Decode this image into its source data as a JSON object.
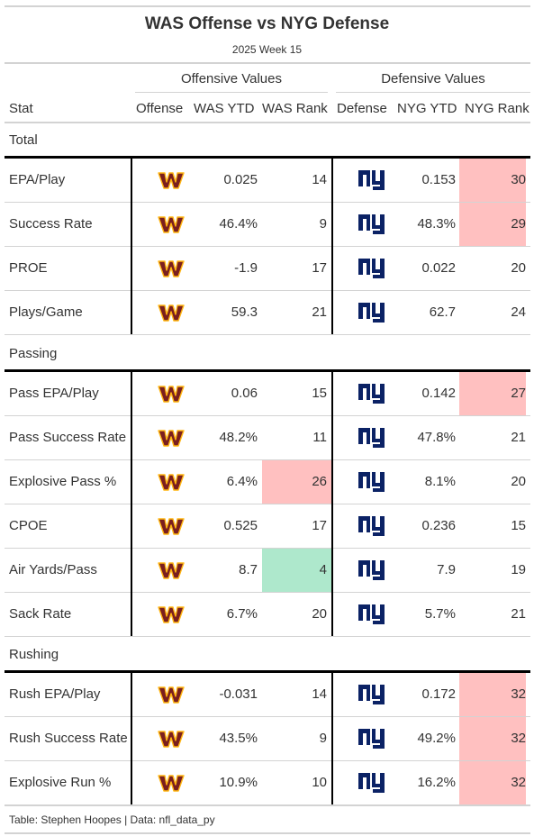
{
  "title": "WAS Offense vs NYG Defense",
  "subtitle": "2025 Week 15",
  "spanners": {
    "offense": "Offensive Values",
    "defense": "Defensive Values"
  },
  "columns": {
    "stat": "Stat",
    "offense": "Offense",
    "off_ytd": "WAS YTD",
    "off_rank": "WAS Rank",
    "defense": "Defense",
    "def_ytd": "NYG YTD",
    "def_rank": "NYG Rank"
  },
  "logos": {
    "offense": {
      "icon": "commanders-w-logo",
      "color": "#7a1f1f",
      "accent": "#ffb612"
    },
    "defense": {
      "icon": "giants-ny-logo",
      "color": "#0b2265"
    }
  },
  "highlight_colors": {
    "bad": "#ffc0c0",
    "good": "#aee8cc"
  },
  "groups": [
    {
      "name": "Total",
      "rows": [
        {
          "stat": "EPA/Play",
          "off_ytd": "0.025",
          "off_rank": "14",
          "off_hl": "",
          "def_ytd": "0.153",
          "def_rank": "30",
          "def_hl": "bad"
        },
        {
          "stat": "Success Rate",
          "off_ytd": "46.4%",
          "off_rank": "9",
          "off_hl": "",
          "def_ytd": "48.3%",
          "def_rank": "29",
          "def_hl": "bad"
        },
        {
          "stat": "PROE",
          "off_ytd": "-1.9",
          "off_rank": "17",
          "off_hl": "",
          "def_ytd": "0.022",
          "def_rank": "20",
          "def_hl": ""
        },
        {
          "stat": "Plays/Game",
          "off_ytd": "59.3",
          "off_rank": "21",
          "off_hl": "",
          "def_ytd": "62.7",
          "def_rank": "24",
          "def_hl": ""
        }
      ]
    },
    {
      "name": "Passing",
      "rows": [
        {
          "stat": "Pass EPA/Play",
          "off_ytd": "0.06",
          "off_rank": "15",
          "off_hl": "",
          "def_ytd": "0.142",
          "def_rank": "27",
          "def_hl": "bad"
        },
        {
          "stat": "Pass Success Rate",
          "off_ytd": "48.2%",
          "off_rank": "11",
          "off_hl": "",
          "def_ytd": "47.8%",
          "def_rank": "21",
          "def_hl": ""
        },
        {
          "stat": "Explosive Pass %",
          "off_ytd": "6.4%",
          "off_rank": "26",
          "off_hl": "bad",
          "def_ytd": "8.1%",
          "def_rank": "20",
          "def_hl": ""
        },
        {
          "stat": "CPOE",
          "off_ytd": "0.525",
          "off_rank": "17",
          "off_hl": "",
          "def_ytd": "0.236",
          "def_rank": "15",
          "def_hl": ""
        },
        {
          "stat": "Air Yards/Pass",
          "off_ytd": "8.7",
          "off_rank": "4",
          "off_hl": "good",
          "def_ytd": "7.9",
          "def_rank": "19",
          "def_hl": ""
        },
        {
          "stat": "Sack Rate",
          "off_ytd": "6.7%",
          "off_rank": "20",
          "off_hl": "",
          "def_ytd": "5.7%",
          "def_rank": "21",
          "def_hl": ""
        }
      ]
    },
    {
      "name": "Rushing",
      "rows": [
        {
          "stat": "Rush EPA/Play",
          "off_ytd": "-0.031",
          "off_rank": "14",
          "off_hl": "",
          "def_ytd": "0.172",
          "def_rank": "32",
          "def_hl": "bad"
        },
        {
          "stat": "Rush Success Rate",
          "off_ytd": "43.5%",
          "off_rank": "9",
          "off_hl": "",
          "def_ytd": "49.2%",
          "def_rank": "32",
          "def_hl": "bad"
        },
        {
          "stat": "Explosive Run %",
          "off_ytd": "10.9%",
          "off_rank": "10",
          "off_hl": "",
          "def_ytd": "16.2%",
          "def_rank": "32",
          "def_hl": "bad"
        }
      ]
    }
  ],
  "footnote": "Table: Stephen Hoopes | Data: nfl_data_py"
}
